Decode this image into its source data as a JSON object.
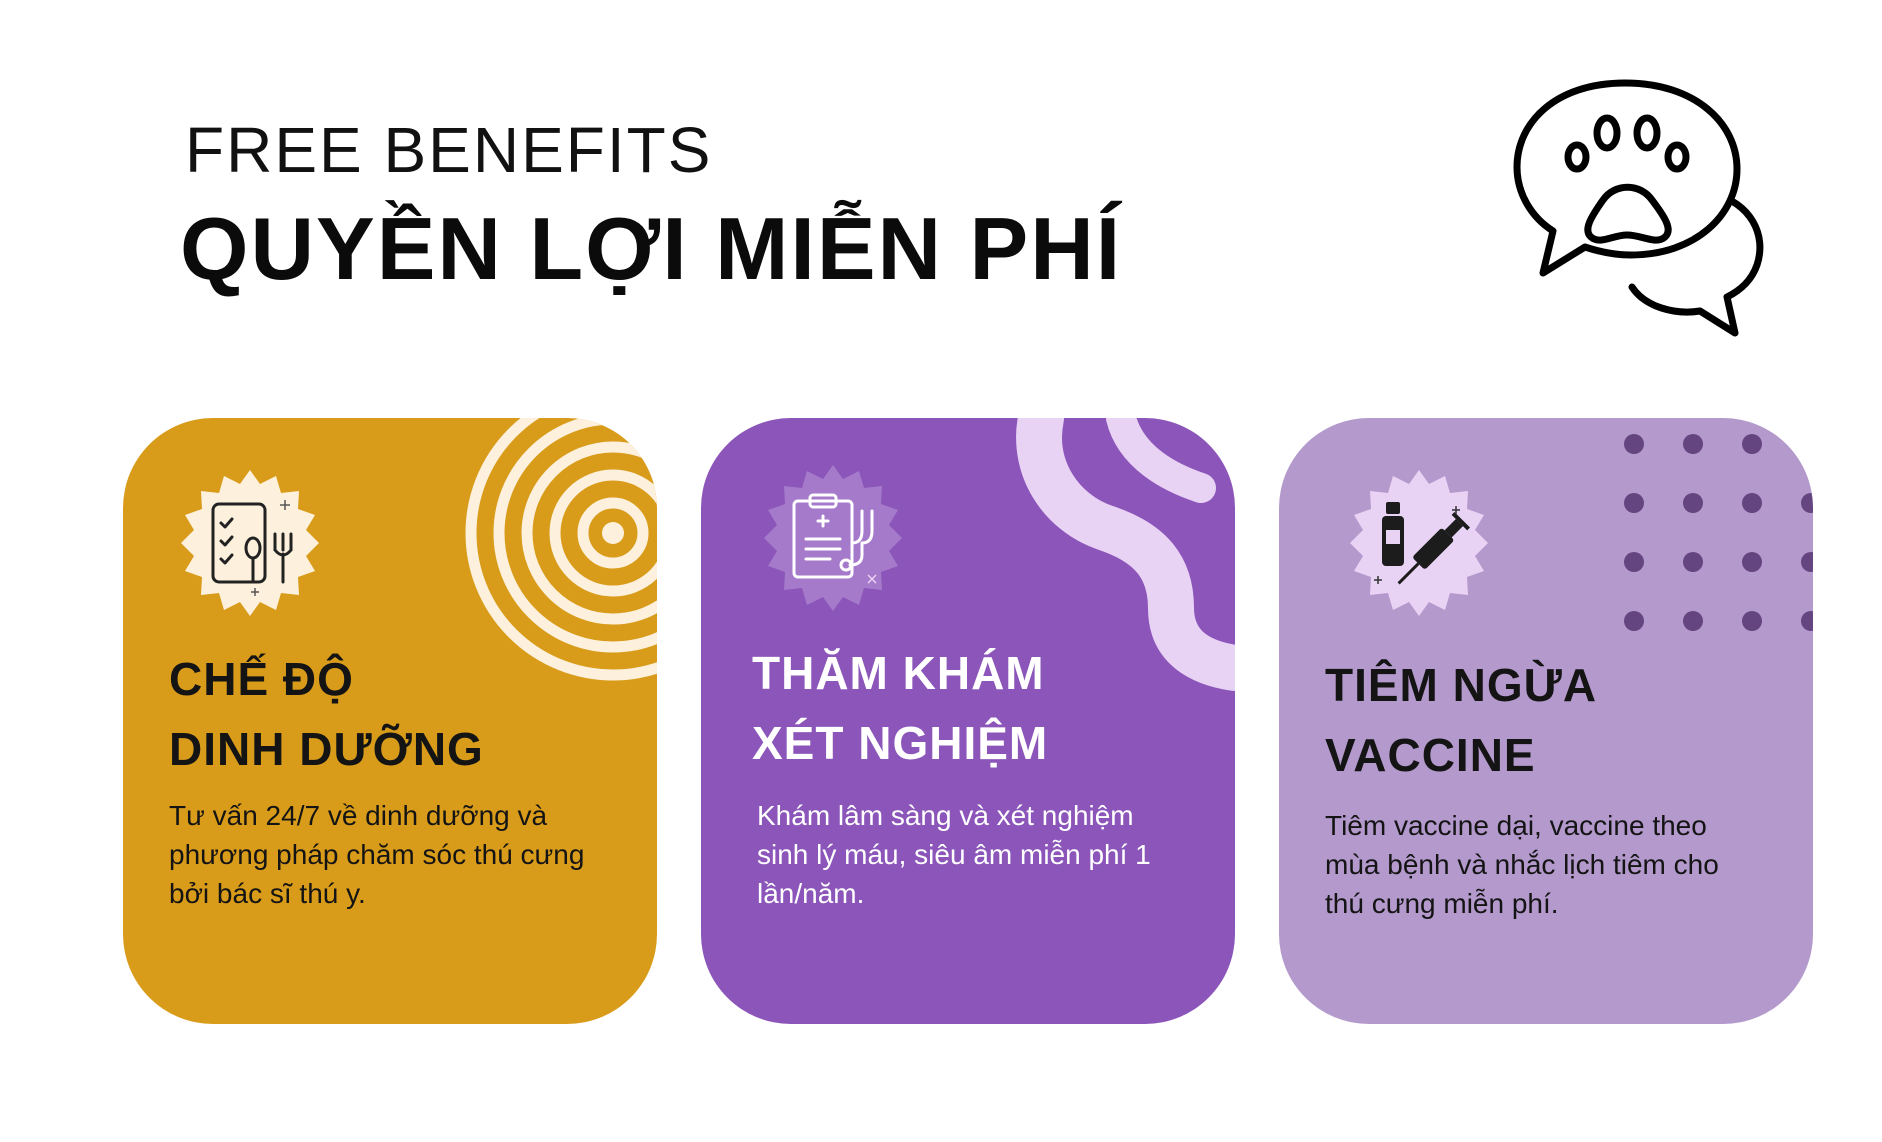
{
  "header": {
    "subtitle": "FREE BENEFITS",
    "title": "QUYỀN LỢI MIỄN PHÍ",
    "logo_icon": "paw-chat-bubble-icon"
  },
  "colors": {
    "card1": "#d99c1a",
    "card2": "#8b55b9",
    "card3": "#b399cc"
  },
  "cards": [
    {
      "title": "CHẾ ĐỘ\nDINH DƯỠNG",
      "description": "Tư vấn 24/7 về dinh dưỡng và phương pháp chăm sóc thú cưng bởi bác sĩ thú y.",
      "icon": "nutrition-checklist-icon"
    },
    {
      "title": "THĂM KHÁM\nXÉT NGHIỆM",
      "description": "Khám lâm sàng và xét nghiệm sinh lý máu, siêu âm miễn phí 1 lần/năm.",
      "icon": "medical-clipboard-icon"
    },
    {
      "title": "TIÊM NGỪA\nVACCINE",
      "description": "Tiêm vaccine dại, vaccine theo mùa bệnh và nhắc lịch tiêm cho thú cưng miễn phí.",
      "icon": "vaccine-syringe-icon"
    }
  ]
}
